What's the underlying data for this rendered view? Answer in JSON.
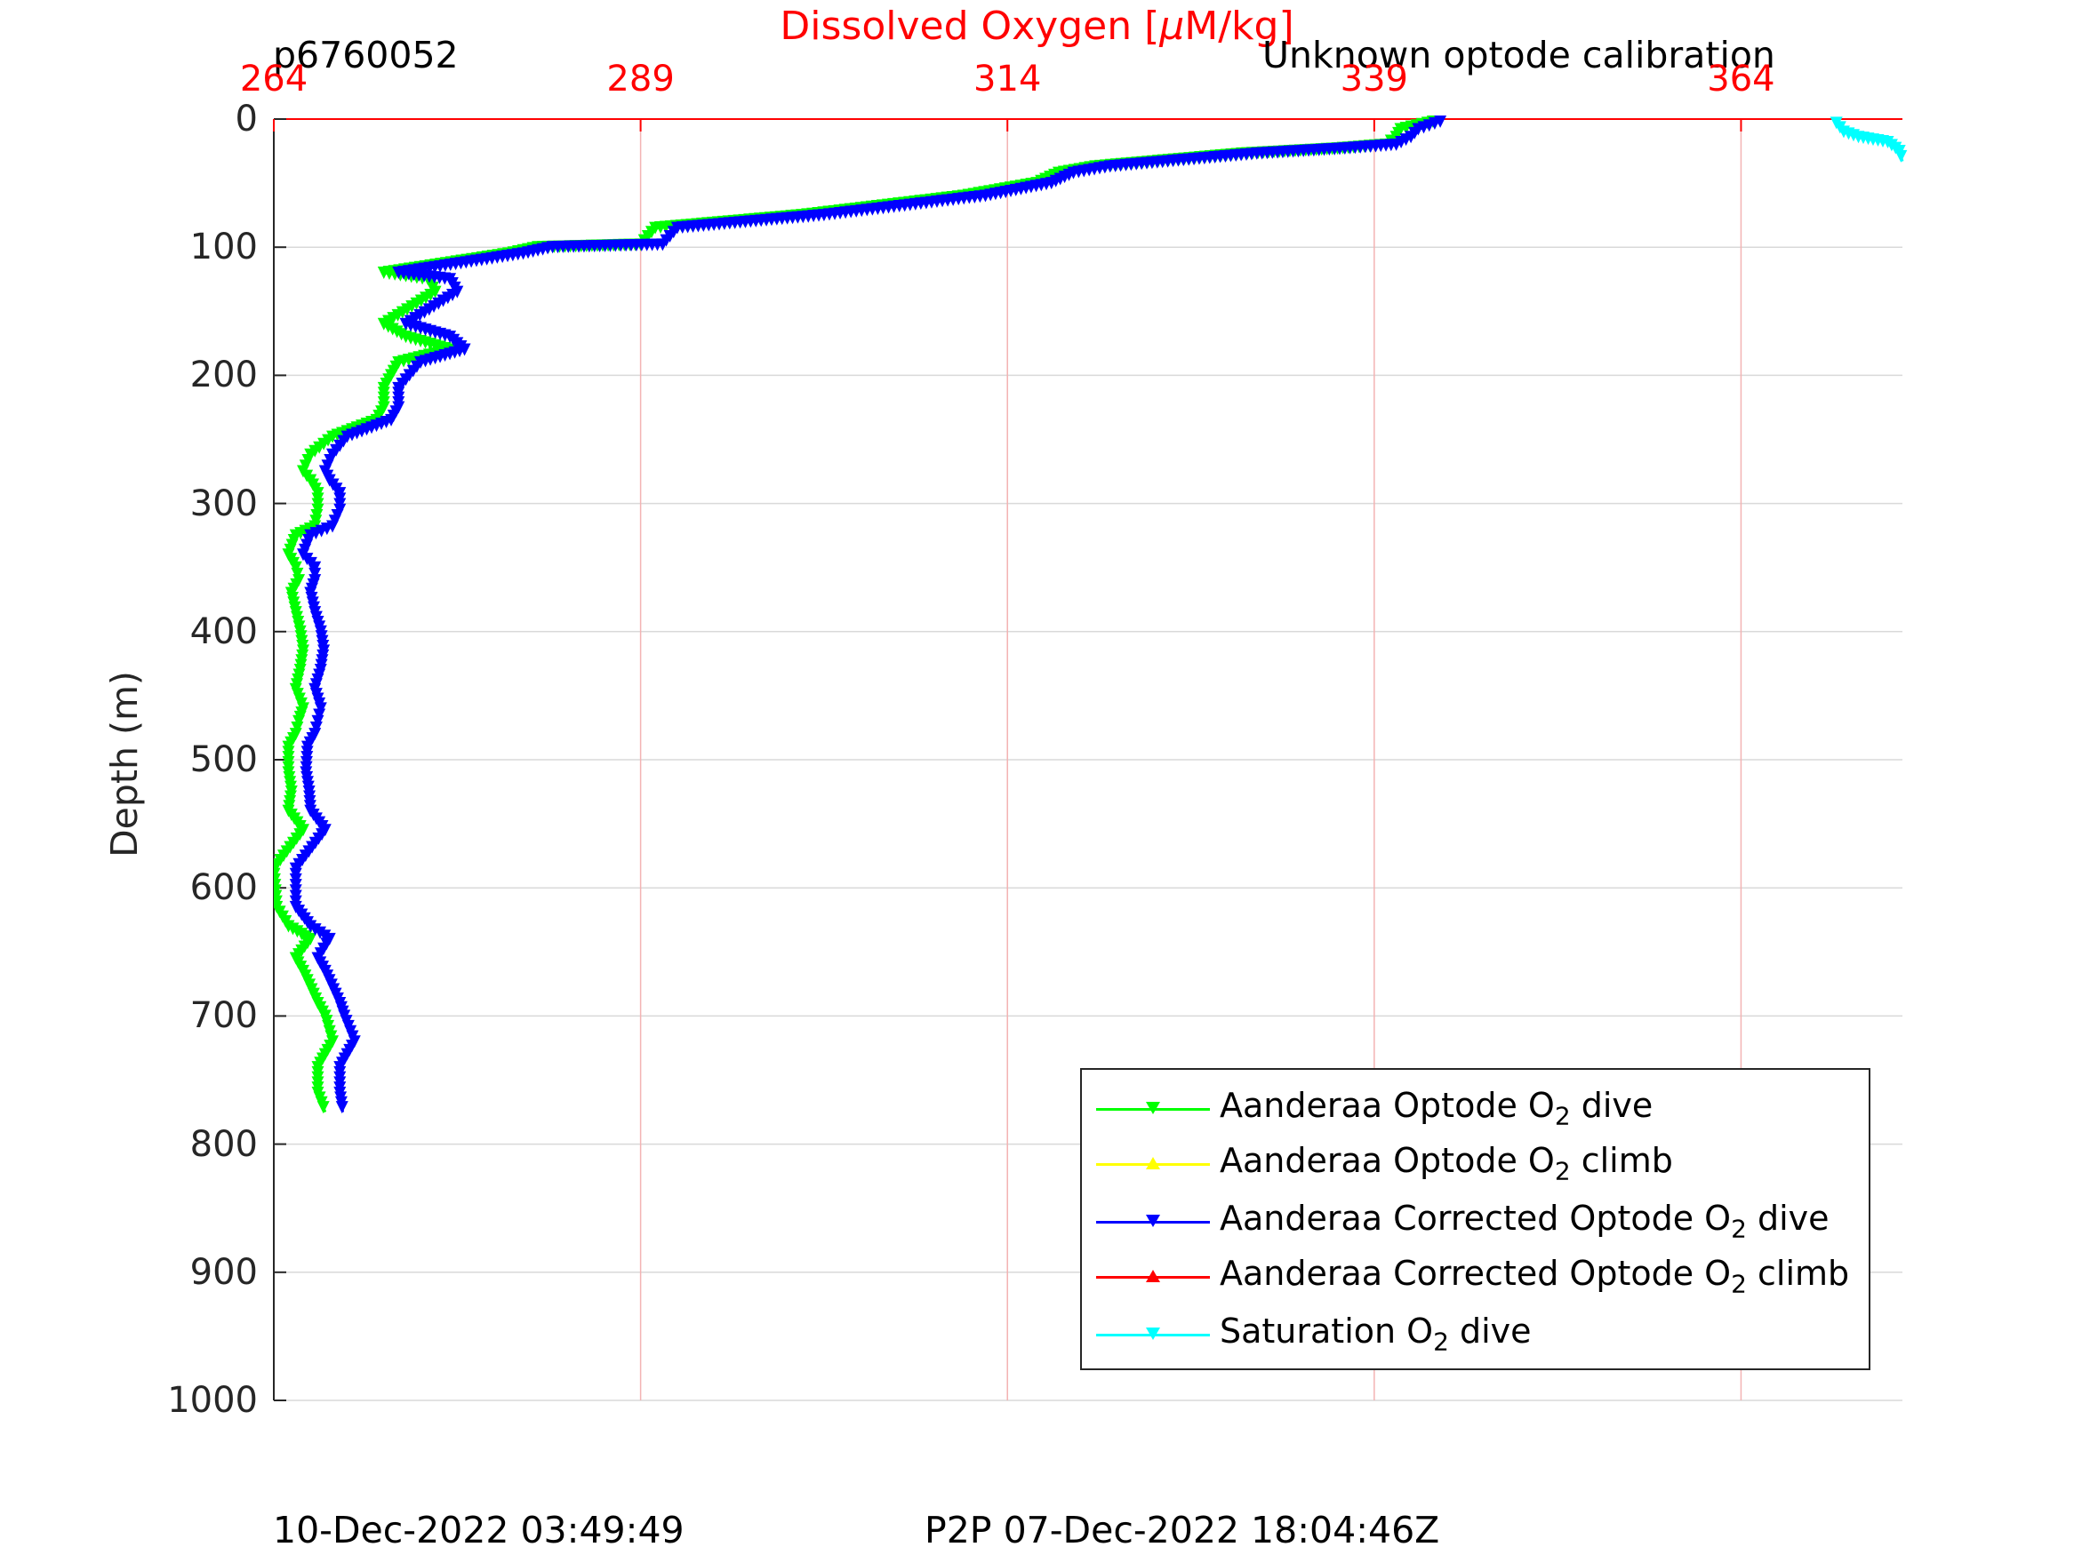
{
  "header": {
    "title_text": "Dissolved Oxygen [",
    "title_mu": "μ",
    "title_unit": "M/kg]",
    "plot_id": "p6760052",
    "subtitle": "Unknown optode calibration"
  },
  "footer": {
    "left": "10-Dec-2022 03:49:49",
    "right": "P2P 07-Dec-2022 18:04:46Z"
  },
  "colors": {
    "x_axis": "#ff0000",
    "grid_x": "#f3b3b3",
    "grid_y": "#d9d9d9",
    "optode_dive": "#00ff00",
    "optode_climb": "#ffff00",
    "corrected_dive": "#0000ff",
    "corrected_climb": "#ff0000",
    "saturation_dive": "#00ffff"
  },
  "legend": {
    "items": [
      {
        "pre": "Aanderaa Optode O",
        "sub": "2",
        "post": " dive",
        "color": "#00ff00",
        "marker": "down"
      },
      {
        "pre": "Aanderaa Optode O",
        "sub": "2",
        "post": " climb",
        "color": "#ffff00",
        "marker": "up"
      },
      {
        "pre": "Aanderaa Corrected Optode O",
        "sub": "2",
        "post": " dive",
        "color": "#0000ff",
        "marker": "down"
      },
      {
        "pre": "Aanderaa Corrected Optode O",
        "sub": "2",
        "post": " climb",
        "color": "#ff0000",
        "marker": "up"
      },
      {
        "pre": "Saturation O",
        "sub": "2",
        "post": " dive",
        "color": "#00ffff",
        "marker": "down"
      }
    ]
  },
  "chart_data": {
    "type": "line",
    "title": "Dissolved Oxygen [μM/kg]",
    "xlabel": "Dissolved Oxygen [μM/kg]",
    "ylabel": "Depth (m)",
    "xlim": [
      264,
      375
    ],
    "ylim": [
      0,
      1000
    ],
    "y_reversed": true,
    "x_axis_location": "top",
    "x_ticks": [
      264,
      289,
      314,
      339,
      364
    ],
    "y_ticks": [
      0,
      100,
      200,
      300,
      400,
      500,
      600,
      700,
      800,
      900,
      1000
    ],
    "grid": true,
    "legend_position": "bottom-right",
    "series": [
      {
        "name": "Aanderaa Optode O2 dive",
        "color": "#00ff00",
        "marker": "triangle-down",
        "x": [
          343.0,
          340.8,
          340.5,
          339.8,
          336.5,
          330.0,
          325.0,
          320.0,
          317.5,
          316.0,
          311.0,
          300.0,
          290.0,
          289.0,
          282.0,
          280.0,
          271.5,
          274.5,
          275.0,
          271.5,
          273.0,
          276.0,
          272.5,
          271.5,
          271.5,
          271.0,
          268.0,
          266.5,
          266.0,
          266.5,
          267.0,
          267.0,
          266.8,
          265.5,
          265.0,
          265.5,
          265.7,
          265.2,
          265.5,
          265.8,
          266.0,
          265.8,
          265.5,
          266.0,
          265.7,
          265.5,
          265.0,
          265.0,
          265.2,
          265.0,
          266.0,
          264.0,
          264.2,
          265.0,
          266.5,
          265.5,
          266.0,
          267.0,
          267.5,
          268.0,
          267.0,
          267.0,
          267.5
        ],
        "y": [
          2,
          8,
          14,
          20,
          23,
          27,
          32,
          37,
          42,
          50,
          60,
          75,
          85,
          98,
          100,
          105,
          120,
          125,
          135,
          160,
          170,
          180,
          190,
          210,
          225,
          235,
          248,
          262,
          275,
          282,
          292,
          305,
          318,
          325,
          340,
          350,
          360,
          370,
          385,
          400,
          415,
          430,
          445,
          460,
          470,
          480,
          490,
          510,
          525,
          540,
          555,
          585,
          615,
          630,
          640,
          655,
          665,
          690,
          700,
          720,
          740,
          760,
          775
        ]
      },
      {
        "name": "Aanderaa Optode O2 climb",
        "color": "#ffff00",
        "marker": "triangle-up",
        "x": [],
        "y": []
      },
      {
        "name": "Aanderaa Corrected Optode O2 dive",
        "color": "#0000ff",
        "marker": "triangle-down",
        "x": [
          343.5,
          342.0,
          341.5,
          340.5,
          337.0,
          331.0,
          326.0,
          321.0,
          318.5,
          317.0,
          312.5,
          301.5,
          291.5,
          290.5,
          283.0,
          281.0,
          272.5,
          276.0,
          276.5,
          273.0,
          276.0,
          277.0,
          274.0,
          272.5,
          272.5,
          272.0,
          269.0,
          268.0,
          267.5,
          267.8,
          268.5,
          268.5,
          268.0,
          266.5,
          266.0,
          266.8,
          266.8,
          266.5,
          266.8,
          267.2,
          267.4,
          267.2,
          266.8,
          267.2,
          267.0,
          266.8,
          266.3,
          266.2,
          266.4,
          266.5,
          267.5,
          265.5,
          265.5,
          266.5,
          267.8,
          267.0,
          267.5,
          268.5,
          268.8,
          269.5,
          268.5,
          268.5,
          268.7
        ],
        "y": [
          2,
          8,
          14,
          20,
          23,
          27,
          32,
          37,
          42,
          50,
          60,
          75,
          85,
          98,
          100,
          105,
          120,
          125,
          135,
          160,
          170,
          180,
          190,
          210,
          225,
          235,
          248,
          262,
          275,
          282,
          292,
          305,
          318,
          325,
          340,
          350,
          360,
          370,
          385,
          400,
          415,
          430,
          445,
          460,
          470,
          480,
          490,
          510,
          525,
          540,
          555,
          585,
          615,
          630,
          640,
          655,
          665,
          690,
          700,
          720,
          740,
          760,
          775
        ]
      },
      {
        "name": "Aanderaa Corrected Optode O2 climb",
        "color": "#ff0000",
        "marker": "triangle-up",
        "x": [],
        "y": []
      },
      {
        "name": "Saturation O2 dive",
        "color": "#00ffff",
        "marker": "triangle-down",
        "x": [
          370.5,
          371.0,
          372.0,
          373.0,
          374.0,
          374.8,
          375.0
        ],
        "y": [
          3,
          10,
          14,
          16,
          18,
          25,
          33
        ]
      }
    ]
  }
}
